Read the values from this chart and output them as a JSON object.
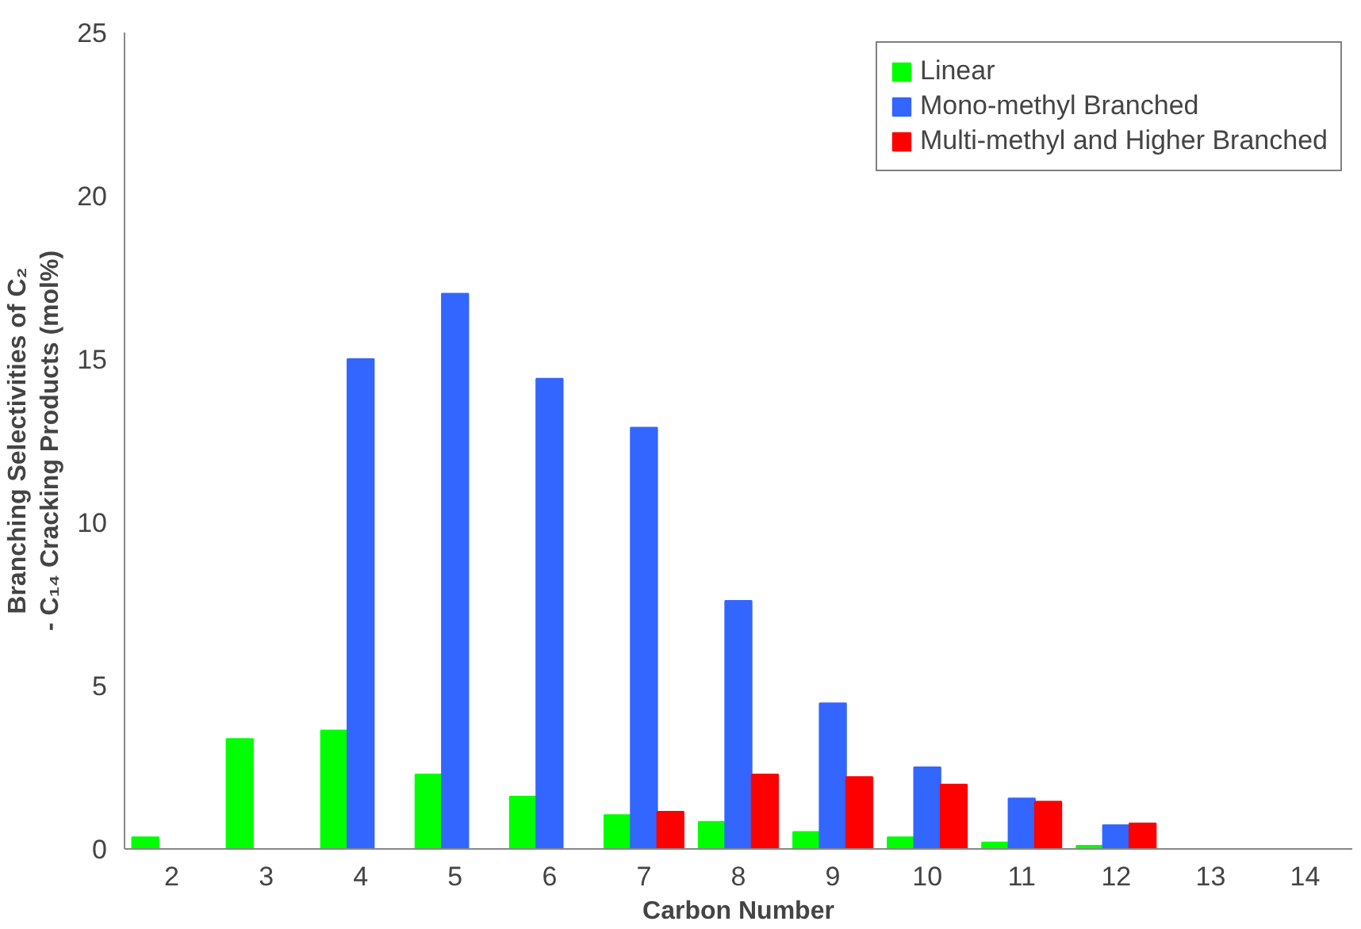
{
  "chart_data": {
    "type": "bar",
    "xlabel": "Carbon Number",
    "ylabel": "Branching Selectivities of C₂ - C₁₄ Cracking Products (mol%)",
    "categories": [
      "2",
      "3",
      "4",
      "5",
      "6",
      "7",
      "8",
      "9",
      "10",
      "11",
      "12",
      "13",
      "14"
    ],
    "series": [
      {
        "name": "Linear",
        "color": "#00ff00",
        "values": [
          0.36,
          3.37,
          3.63,
          2.28,
          1.6,
          1.04,
          0.83,
          0.52,
          0.36,
          0.2,
          0.1,
          null,
          null
        ]
      },
      {
        "name": "Mono-methyl Branched",
        "color": "#3366ff",
        "values": [
          null,
          null,
          15.0,
          17.0,
          14.4,
          12.9,
          7.6,
          4.46,
          2.5,
          1.55,
          0.73,
          null,
          null
        ]
      },
      {
        "name": "Multi-methyl and Higher Branched",
        "color": "#ff0000",
        "values": [
          null,
          null,
          null,
          null,
          null,
          1.14,
          2.28,
          2.2,
          1.97,
          1.45,
          0.78,
          null,
          null
        ]
      }
    ],
    "ylim": [
      0,
      25
    ],
    "yticks": [
      0,
      5,
      10,
      15,
      20,
      25
    ],
    "grid": false,
    "legend": "top right"
  }
}
